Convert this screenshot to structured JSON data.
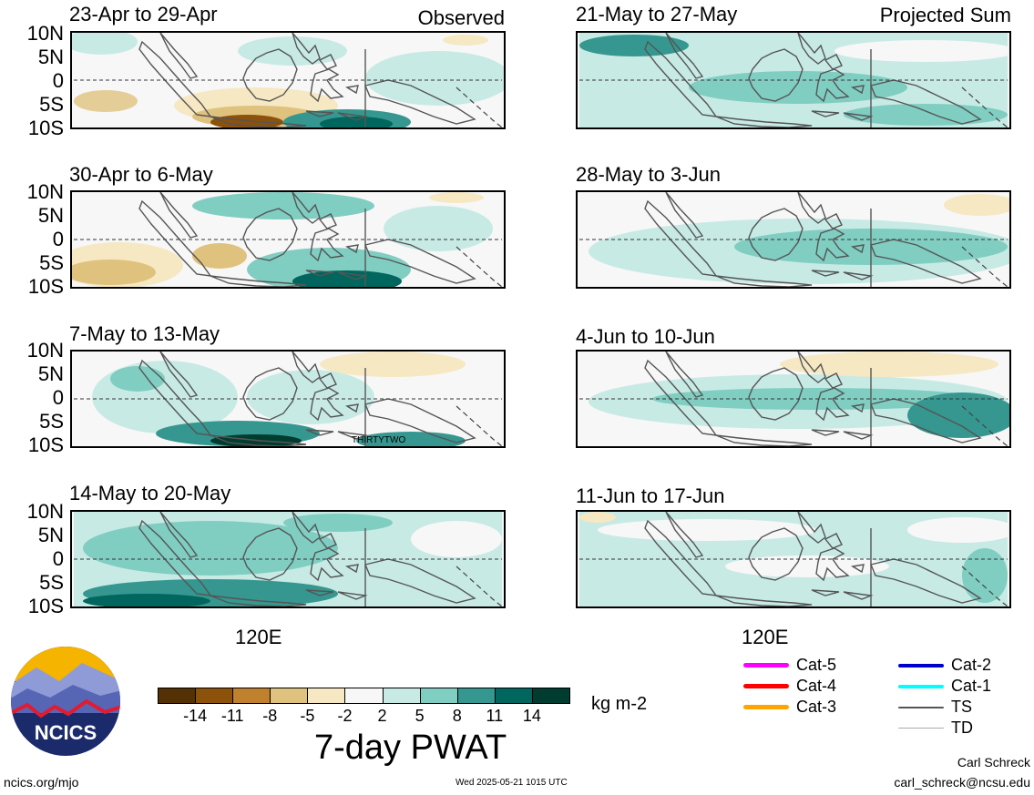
{
  "observed_label": "Observed",
  "projected_label": "Projected Sum",
  "y_ticks": [
    "10N",
    "5N",
    "0",
    "5S",
    "10S"
  ],
  "x_tick": "120E",
  "panels_left": [
    {
      "title": "23-Apr to 29-Apr"
    },
    {
      "title": "30-Apr to 6-May"
    },
    {
      "title": "7-May to 13-May",
      "storm_label": "THIRTYTWO"
    },
    {
      "title": "14-May to 20-May"
    }
  ],
  "panels_right": [
    {
      "title": "21-May to 27-May"
    },
    {
      "title": "28-May to 3-Jun"
    },
    {
      "title": "4-Jun to 10-Jun"
    },
    {
      "title": "11-Jun to 17-Jun"
    }
  ],
  "colorbar": {
    "ticks": [
      "-14",
      "-11",
      "-8",
      "-5",
      "-2",
      "2",
      "5",
      "8",
      "11",
      "14"
    ],
    "colors": [
      "#543005",
      "#8c510a",
      "#bf812d",
      "#dfc27d",
      "#f6e8c3",
      "#f7f7f7",
      "#c7eae5",
      "#80cdc1",
      "#35978f",
      "#01665e",
      "#003c30"
    ],
    "units": "kg m-2",
    "title": "7-day PWAT"
  },
  "legend": [
    {
      "label": "Cat-5",
      "color": "#ff00ff"
    },
    {
      "label": "Cat-4",
      "color": "#ff0000"
    },
    {
      "label": "Cat-3",
      "color": "#ffa500"
    },
    {
      "label": "Cat-2",
      "color": "#0000cd"
    },
    {
      "label": "Cat-1",
      "color": "#00ffff"
    },
    {
      "label": "TS",
      "color": "#555555"
    },
    {
      "label": "TD",
      "color": "#aaaaaa"
    }
  ],
  "logo_text": "NCICS",
  "footer": {
    "site": "ncics.org/mjo",
    "timestamp": "Wed 2025-05-21 1015 UTC",
    "author": "Carl Schreck",
    "email": "carl_schreck@ncsu.edu"
  }
}
